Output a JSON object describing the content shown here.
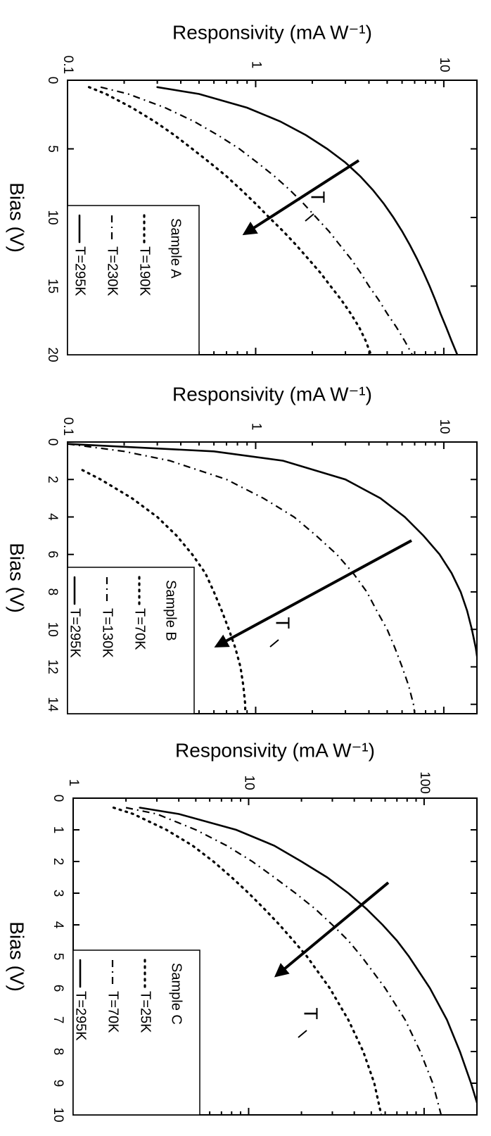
{
  "chart_data": [
    {
      "type": "line",
      "legend_title": "Sample A",
      "x_axis_title": "Bias (V)",
      "y_axis_title": "Responsivity (mA W⁻¹)",
      "x_scale": "linear",
      "y_scale": "log",
      "xlim": [
        0,
        20
      ],
      "ylim": [
        0.1,
        15
      ],
      "x_ticks": [
        0,
        5,
        10,
        15,
        20
      ],
      "y_ticks": [
        0.1,
        1,
        10
      ],
      "y_tick_labels": [
        "0.1",
        "1",
        "10"
      ],
      "annotation": "T",
      "series": [
        {
          "name": "T=190K",
          "style": "dotted",
          "x": [
            0.5,
            1,
            2,
            3,
            4,
            5,
            6,
            7,
            8,
            9,
            10,
            11,
            12,
            13,
            14,
            15,
            16,
            17,
            18,
            19,
            20
          ],
          "y": [
            0.13,
            0.16,
            0.22,
            0.29,
            0.37,
            0.46,
            0.57,
            0.7,
            0.84,
            1.0,
            1.18,
            1.4,
            1.64,
            1.9,
            2.2,
            2.5,
            2.85,
            3.2,
            3.55,
            3.85,
            4.1
          ]
        },
        {
          "name": "T=230K",
          "style": "dash-dot",
          "x": [
            0.5,
            1,
            2,
            3,
            4,
            5,
            6,
            7,
            8,
            9,
            10,
            11,
            12,
            13,
            14,
            15,
            16,
            17,
            18,
            19,
            20
          ],
          "y": [
            0.15,
            0.21,
            0.33,
            0.47,
            0.63,
            0.82,
            1.02,
            1.26,
            1.52,
            1.8,
            2.1,
            2.45,
            2.8,
            3.2,
            3.6,
            4.0,
            4.5,
            5.0,
            5.6,
            6.2,
            6.8
          ]
        },
        {
          "name": "T=295K",
          "style": "solid",
          "x": [
            0.5,
            1,
            2,
            3,
            4,
            5,
            6,
            7,
            8,
            9,
            10,
            11,
            12,
            13,
            14,
            15,
            16,
            17,
            18,
            19,
            20
          ],
          "y": [
            0.3,
            0.5,
            0.9,
            1.35,
            1.85,
            2.4,
            3.0,
            3.6,
            4.2,
            4.8,
            5.4,
            6.0,
            6.6,
            7.2,
            7.8,
            8.4,
            9.0,
            9.6,
            10.3,
            11.0,
            11.8
          ]
        }
      ]
    },
    {
      "type": "line",
      "legend_title": "Sample B",
      "x_axis_title": "Bias (V)",
      "y_axis_title": "Responsivity (mA W⁻¹)",
      "x_scale": "linear",
      "y_scale": "log",
      "xlim": [
        0,
        14.5
      ],
      "ylim": [
        0.1,
        15
      ],
      "x_ticks": [
        0,
        2,
        4,
        6,
        8,
        10,
        12,
        14
      ],
      "y_ticks": [
        0.1,
        1,
        10
      ],
      "y_tick_labels": [
        "0.1",
        "1",
        "10"
      ],
      "annotation": "T",
      "series": [
        {
          "name": "T=70K",
          "style": "dotted",
          "x": [
            1.5,
            2,
            3,
            4,
            5,
            6,
            7,
            8,
            9,
            10,
            11,
            12,
            13,
            14,
            14.5
          ],
          "y": [
            0.12,
            0.15,
            0.22,
            0.3,
            0.38,
            0.46,
            0.54,
            0.6,
            0.66,
            0.72,
            0.78,
            0.83,
            0.86,
            0.88,
            0.88
          ]
        },
        {
          "name": "T=130K",
          "style": "dash-dot",
          "x": [
            0.1,
            0.5,
            1,
            2,
            3,
            4,
            5,
            6,
            7,
            8,
            9,
            10,
            11,
            12,
            13,
            14,
            14.5
          ],
          "y": [
            0.1,
            0.2,
            0.35,
            0.7,
            1.1,
            1.6,
            2.1,
            2.7,
            3.3,
            3.9,
            4.4,
            5.0,
            5.5,
            6.0,
            6.5,
            6.9,
            7.0
          ]
        },
        {
          "name": "T=295K",
          "style": "solid",
          "x": [
            0.1,
            0.5,
            1,
            2,
            3,
            4,
            5,
            6,
            7,
            8,
            9,
            10,
            11,
            12,
            13,
            14,
            14.5
          ],
          "y": [
            0.1,
            0.6,
            1.4,
            3.0,
            4.6,
            6.2,
            7.8,
            9.5,
            11.0,
            12.3,
            13.3,
            14.1,
            14.8,
            15.3,
            15.7,
            16.0,
            16.0
          ]
        }
      ]
    },
    {
      "type": "line",
      "legend_title": "Sample C",
      "x_axis_title": "Bias (V)",
      "y_axis_title": "Responsivity (mA W⁻¹)",
      "x_scale": "linear",
      "y_scale": "log",
      "xlim": [
        0,
        10
      ],
      "ylim": [
        1,
        200
      ],
      "x_ticks": [
        0,
        1,
        2,
        3,
        4,
        5,
        6,
        7,
        8,
        9,
        10
      ],
      "y_ticks": [
        1,
        10,
        100
      ],
      "y_tick_labels": [
        "1",
        "10",
        "100"
      ],
      "annotation": "T",
      "series": [
        {
          "name": "T=25K",
          "style": "dotted",
          "x": [
            0.3,
            0.5,
            1,
            1.5,
            2,
            2.5,
            3,
            3.5,
            4,
            4.5,
            5,
            6,
            7,
            8,
            9,
            10
          ],
          "y": [
            1.7,
            2.2,
            3.4,
            4.8,
            6.3,
            8.0,
            10.0,
            12.3,
            15.0,
            18.0,
            21.5,
            29.0,
            37.0,
            45.0,
            52.0,
            57.0
          ]
        },
        {
          "name": "T=70K",
          "style": "dash-dot",
          "x": [
            0.3,
            0.5,
            1,
            1.5,
            2,
            2.5,
            3,
            3.5,
            4,
            4.5,
            5,
            6,
            7,
            8,
            9,
            10
          ],
          "y": [
            2.0,
            3.0,
            5.0,
            7.5,
            10.5,
            14.0,
            18.5,
            24.0,
            30.0,
            37.0,
            44.0,
            60.0,
            78.0,
            95.0,
            112.0,
            125.0
          ]
        },
        {
          "name": "T=295K",
          "style": "solid",
          "x": [
            0.3,
            0.5,
            1,
            1.5,
            2,
            2.5,
            3,
            3.5,
            4,
            4.5,
            5,
            6,
            7,
            8,
            9,
            10
          ],
          "y": [
            2.4,
            4.0,
            8.5,
            14.0,
            20.0,
            28.0,
            37.0,
            47.0,
            58.0,
            70.0,
            82.0,
            108.0,
            135.0,
            160.0,
            185.0,
            210.0
          ]
        }
      ]
    }
  ]
}
